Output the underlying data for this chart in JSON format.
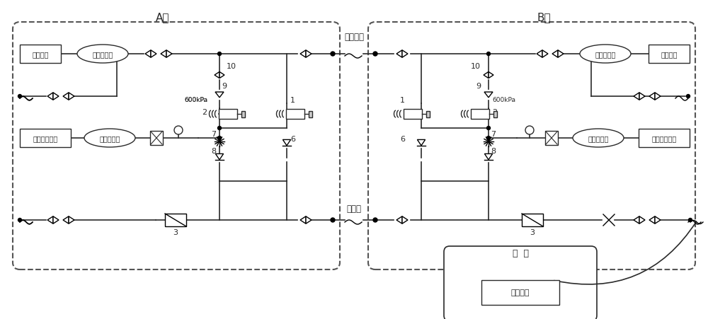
{
  "bg_color": "#ffffff",
  "line_color": "#2a2a2a",
  "dashed_color": "#555555",
  "label_A": "A节",
  "label_B": "B节",
  "label_main_pipe": "总风联管",
  "label_supply_pipe": "供风管",
  "label_vehicle": "车  辆",
  "label_air_device": "用风设备",
  "wind_source": "风源装置",
  "tank1": "第一总风罐",
  "tank2": "第二总风罐",
  "brake": "制动控制系统",
  "pressure": "600kPa"
}
